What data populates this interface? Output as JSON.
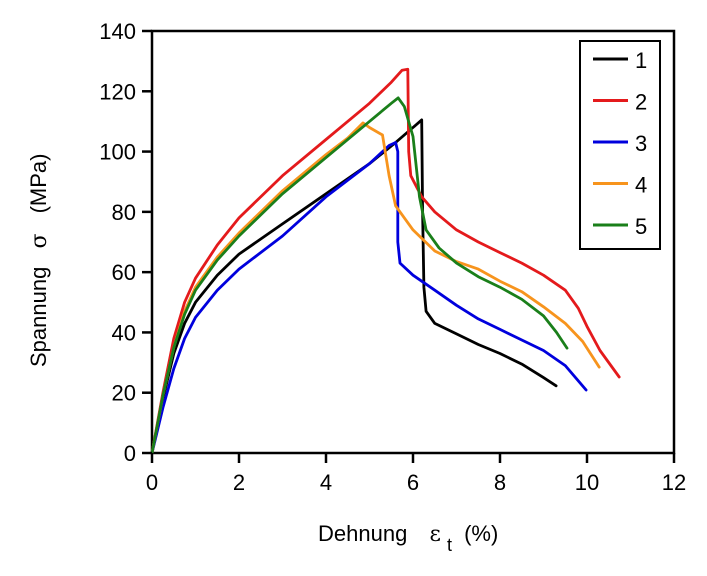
{
  "chart_data": {
    "type": "line",
    "title": "",
    "xlabel": "Dehnung  εt (%)",
    "xlabel_parts": {
      "main": "Dehnung",
      "symbol": "ε",
      "subscript": "t",
      "unit": "(%)"
    },
    "ylabel": "Spannung  σ  (MPa)",
    "ylabel_parts": {
      "main": "Spannung",
      "symbol": "σ",
      "unit": "(MPa)"
    },
    "xlim": [
      0,
      12
    ],
    "ylim": [
      0,
      140
    ],
    "xticks": [
      0,
      2,
      4,
      6,
      8,
      10,
      12
    ],
    "yticks": [
      0,
      20,
      40,
      60,
      80,
      100,
      120,
      140
    ],
    "grid": false,
    "legend": {
      "position": "top-right"
    },
    "series": [
      {
        "name": "1",
        "color": "#000000",
        "points": [
          [
            0,
            0
          ],
          [
            0.25,
            18
          ],
          [
            0.5,
            33
          ],
          [
            0.75,
            43
          ],
          [
            1,
            50
          ],
          [
            1.5,
            59
          ],
          [
            2,
            66
          ],
          [
            3,
            76
          ],
          [
            4,
            86
          ],
          [
            5,
            96
          ],
          [
            5.6,
            103
          ],
          [
            6.0,
            108
          ],
          [
            6.2,
            110.5
          ],
          [
            6.22,
            80
          ],
          [
            6.25,
            55
          ],
          [
            6.3,
            47
          ],
          [
            6.5,
            43
          ],
          [
            7,
            39.5
          ],
          [
            7.5,
            36
          ],
          [
            8,
            33
          ],
          [
            8.5,
            29.5
          ],
          [
            9,
            25
          ],
          [
            9.29,
            22.3
          ]
        ]
      },
      {
        "name": "2",
        "color": "#e41a1c",
        "points": [
          [
            0,
            0
          ],
          [
            0.25,
            20
          ],
          [
            0.5,
            38
          ],
          [
            0.75,
            50
          ],
          [
            1,
            58
          ],
          [
            1.5,
            69
          ],
          [
            2,
            78
          ],
          [
            3,
            92
          ],
          [
            4,
            104
          ],
          [
            5,
            116
          ],
          [
            5.5,
            123
          ],
          [
            5.75,
            127
          ],
          [
            5.88,
            127.3
          ],
          [
            5.9,
            100
          ],
          [
            5.95,
            92
          ],
          [
            6.2,
            85
          ],
          [
            6.5,
            80
          ],
          [
            7,
            74
          ],
          [
            7.5,
            70
          ],
          [
            8,
            66.5
          ],
          [
            8.5,
            63
          ],
          [
            9,
            59
          ],
          [
            9.5,
            54
          ],
          [
            9.8,
            48
          ],
          [
            10,
            42
          ],
          [
            10.3,
            34
          ],
          [
            10.74,
            25.2
          ]
        ]
      },
      {
        "name": "3",
        "color": "#0000dd",
        "points": [
          [
            0,
            0
          ],
          [
            0.25,
            15
          ],
          [
            0.5,
            28
          ],
          [
            0.75,
            38
          ],
          [
            1,
            45
          ],
          [
            1.5,
            54
          ],
          [
            2,
            61
          ],
          [
            3,
            72
          ],
          [
            4,
            85
          ],
          [
            5,
            96
          ],
          [
            5.45,
            102
          ],
          [
            5.6,
            103
          ],
          [
            5.65,
            100
          ],
          [
            5.65,
            70
          ],
          [
            5.7,
            63
          ],
          [
            6,
            59
          ],
          [
            6.5,
            54
          ],
          [
            7,
            49
          ],
          [
            7.5,
            44.5
          ],
          [
            8,
            41
          ],
          [
            8.5,
            37.5
          ],
          [
            9,
            34
          ],
          [
            9.5,
            29
          ],
          [
            9.98,
            20.9
          ]
        ]
      },
      {
        "name": "4",
        "color": "#f7941d",
        "points": [
          [
            0,
            0
          ],
          [
            0.25,
            19
          ],
          [
            0.5,
            35
          ],
          [
            0.75,
            47
          ],
          [
            1,
            55
          ],
          [
            1.5,
            65
          ],
          [
            2,
            73
          ],
          [
            3,
            87
          ],
          [
            4,
            99
          ],
          [
            4.5,
            104.5
          ],
          [
            4.85,
            109.5
          ],
          [
            5.0,
            108
          ],
          [
            5.3,
            105.5
          ],
          [
            5.45,
            92
          ],
          [
            5.6,
            82
          ],
          [
            6,
            74
          ],
          [
            6.5,
            67
          ],
          [
            7,
            63.5
          ],
          [
            7.5,
            61
          ],
          [
            8,
            57
          ],
          [
            8.5,
            53.5
          ],
          [
            9,
            48.5
          ],
          [
            9.5,
            43
          ],
          [
            9.9,
            37
          ],
          [
            10.28,
            28.5
          ]
        ]
      },
      {
        "name": "5",
        "color": "#1a7f1a",
        "points": [
          [
            0,
            0
          ],
          [
            0.25,
            19
          ],
          [
            0.5,
            35
          ],
          [
            0.75,
            46
          ],
          [
            1,
            54
          ],
          [
            1.5,
            64
          ],
          [
            2,
            72
          ],
          [
            3,
            86
          ],
          [
            4,
            98
          ],
          [
            5,
            110
          ],
          [
            5.5,
            116
          ],
          [
            5.66,
            117.8
          ],
          [
            5.8,
            115
          ],
          [
            6.0,
            105
          ],
          [
            6.15,
            85
          ],
          [
            6.3,
            74
          ],
          [
            6.6,
            68
          ],
          [
            7,
            63
          ],
          [
            7.5,
            58.5
          ],
          [
            8,
            55
          ],
          [
            8.5,
            51
          ],
          [
            9,
            45.5
          ],
          [
            9.3,
            40
          ],
          [
            9.54,
            34.8
          ]
        ]
      }
    ]
  }
}
